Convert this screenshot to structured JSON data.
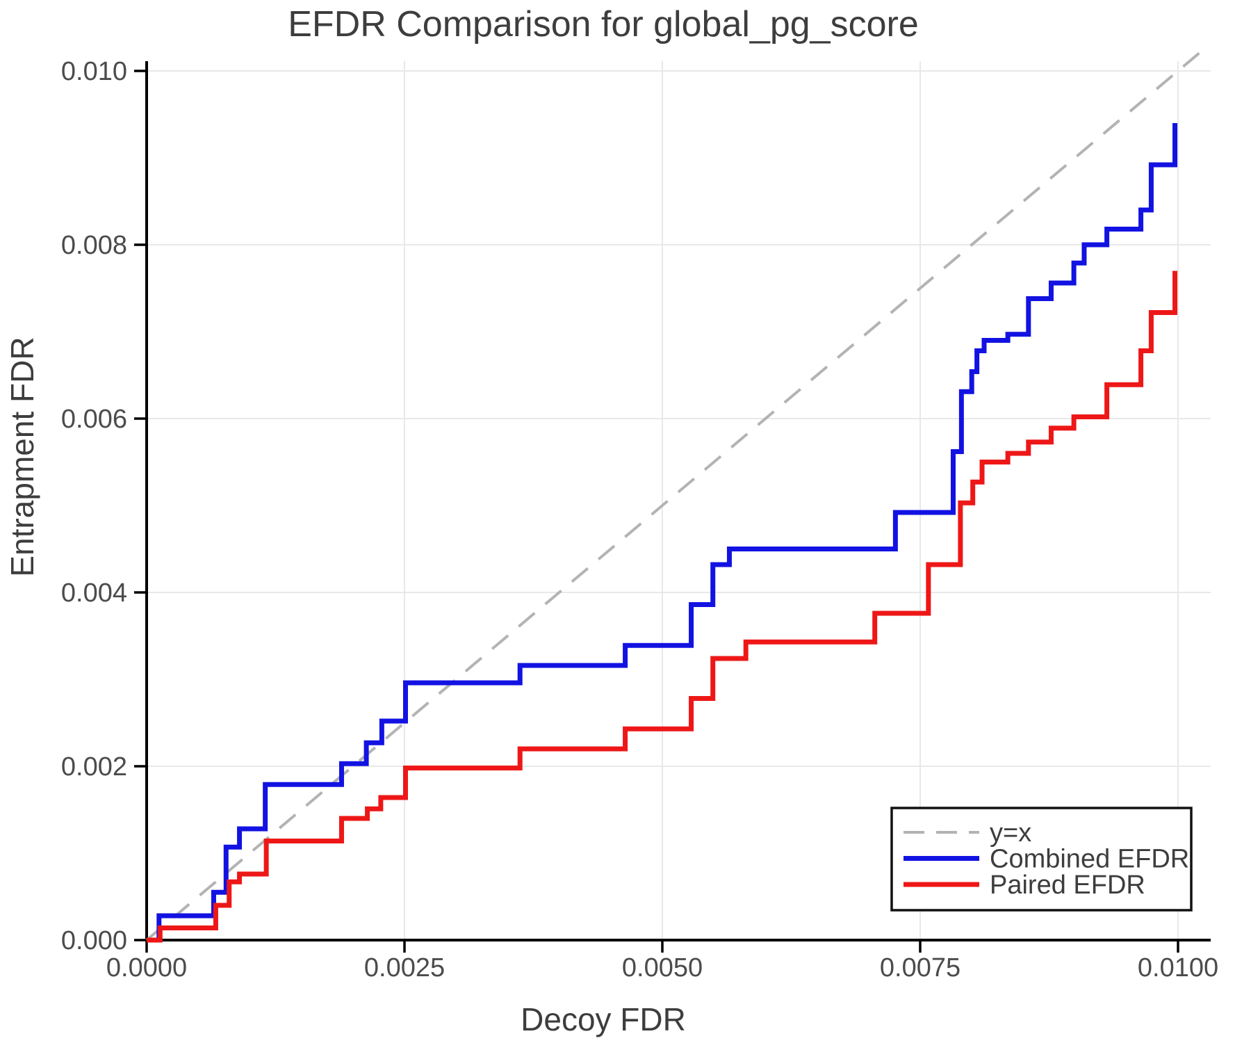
{
  "chart_data": {
    "type": "line",
    "title": "EFDR Comparison for global_pg_score",
    "xlabel": "Decoy FDR",
    "ylabel": "Entrapment FDR",
    "xlim": [
      0.0,
      0.0103
    ],
    "ylim": [
      0.0,
      0.01
    ],
    "grid": true,
    "legend_position": "lower right",
    "x_ticks": [
      0.0,
      0.0025,
      0.005,
      0.0075,
      0.01
    ],
    "x_tick_labels": [
      "0.0000",
      "0.0025",
      "0.0050",
      "0.0075",
      "0.0100"
    ],
    "y_ticks": [
      0.0,
      0.002,
      0.004,
      0.006,
      0.008,
      0.01
    ],
    "y_tick_labels": [
      "0.000",
      "0.002",
      "0.004",
      "0.006",
      "0.008",
      "0.010"
    ],
    "series": [
      {
        "name": "y=x",
        "style": "dashed",
        "color": "#b3b3b3",
        "points": [
          [
            0.0,
            0.0
          ],
          [
            0.01025,
            0.01025
          ]
        ]
      },
      {
        "name": "Combined EFDR",
        "style": "step",
        "color": "#1212e2",
        "points": [
          [
            0.0,
            0.0
          ],
          [
            0.00012,
            0.00028
          ],
          [
            0.00065,
            0.00055
          ],
          [
            0.00077,
            0.00107
          ],
          [
            0.0009,
            0.00128
          ],
          [
            0.00115,
            0.00179
          ],
          [
            0.00189,
            0.00203
          ],
          [
            0.00213,
            0.00227
          ],
          [
            0.00228,
            0.00252
          ],
          [
            0.00251,
            0.00296
          ],
          [
            0.00362,
            0.00316
          ],
          [
            0.00464,
            0.00339
          ],
          [
            0.00528,
            0.00386
          ],
          [
            0.00549,
            0.00432
          ],
          [
            0.00565,
            0.0045
          ],
          [
            0.00726,
            0.00492
          ],
          [
            0.00782,
            0.00562
          ],
          [
            0.0079,
            0.00631
          ],
          [
            0.008,
            0.00654
          ],
          [
            0.00805,
            0.00678
          ],
          [
            0.00812,
            0.0069
          ],
          [
            0.00835,
            0.00697
          ],
          [
            0.00855,
            0.00738
          ],
          [
            0.00877,
            0.00756
          ],
          [
            0.00899,
            0.00779
          ],
          [
            0.00909,
            0.008
          ],
          [
            0.00931,
            0.00818
          ],
          [
            0.00964,
            0.0084
          ],
          [
            0.00974,
            0.00892
          ],
          [
            0.00997,
            0.0094
          ]
        ]
      },
      {
        "name": "Paired EFDR",
        "style": "step",
        "color": "#ee1717",
        "points": [
          [
            0.0,
            0.0
          ],
          [
            0.00013,
            0.00014
          ],
          [
            0.00067,
            0.0004
          ],
          [
            0.0008,
            0.00067
          ],
          [
            0.0009,
            0.00076
          ],
          [
            0.00116,
            0.00114
          ],
          [
            0.00189,
            0.0014
          ],
          [
            0.00214,
            0.00151
          ],
          [
            0.00227,
            0.00164
          ],
          [
            0.00251,
            0.00198
          ],
          [
            0.00362,
            0.0022
          ],
          [
            0.00464,
            0.00243
          ],
          [
            0.00528,
            0.00278
          ],
          [
            0.00549,
            0.00324
          ],
          [
            0.00581,
            0.00343
          ],
          [
            0.00706,
            0.00376
          ],
          [
            0.00758,
            0.00432
          ],
          [
            0.00789,
            0.00503
          ],
          [
            0.00801,
            0.00527
          ],
          [
            0.0081,
            0.0055
          ],
          [
            0.00835,
            0.0056
          ],
          [
            0.00855,
            0.00573
          ],
          [
            0.00877,
            0.00589
          ],
          [
            0.00899,
            0.00602
          ],
          [
            0.00931,
            0.00639
          ],
          [
            0.00964,
            0.00678
          ],
          [
            0.00974,
            0.00722
          ],
          [
            0.00997,
            0.0077
          ]
        ]
      }
    ]
  },
  "legend": {
    "items": [
      "y=x",
      "Combined EFDR",
      "Paired EFDR"
    ]
  }
}
